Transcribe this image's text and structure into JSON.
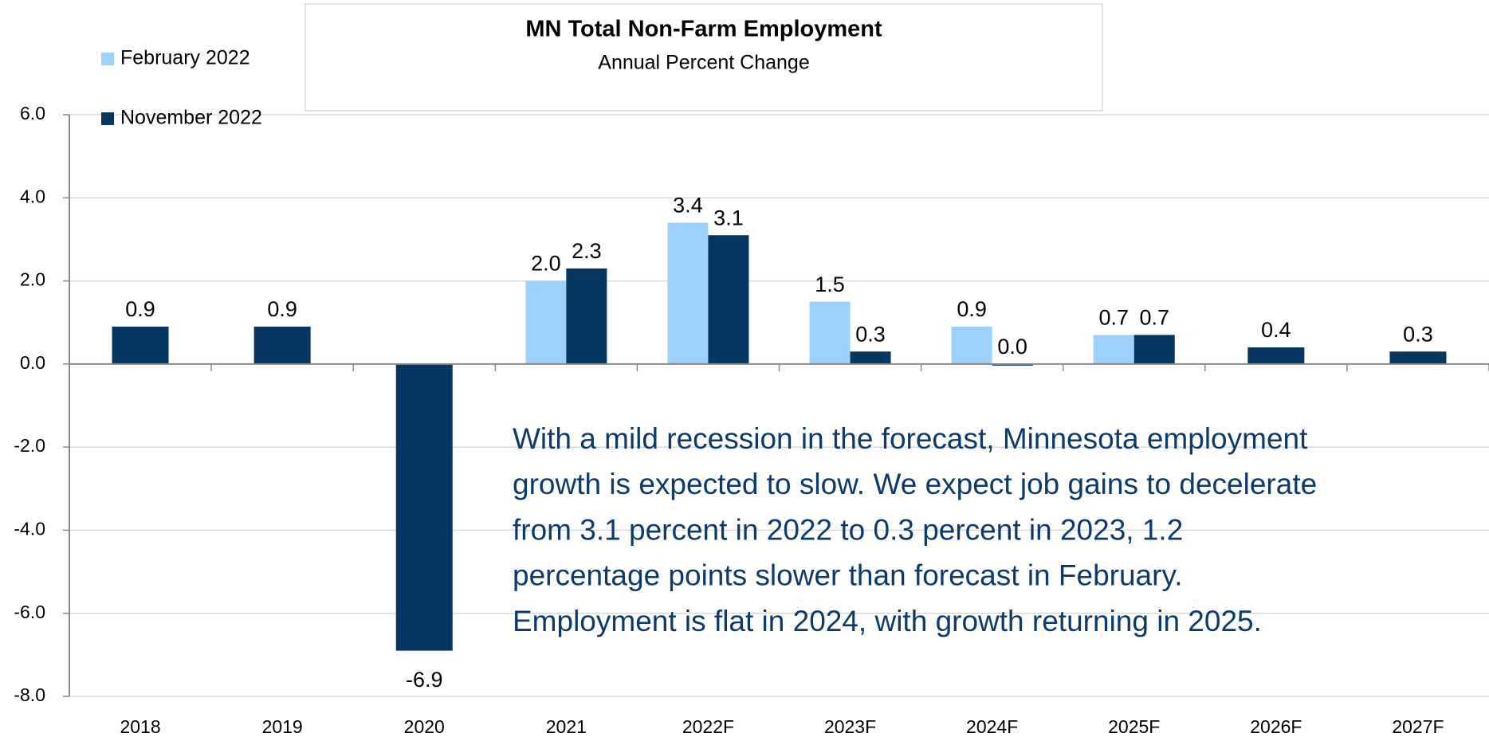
{
  "chart_data": {
    "type": "bar",
    "title": "MN Total Non-Farm Employment",
    "subtitle": "Annual Percent Change",
    "categories": [
      "2018",
      "2019",
      "2020",
      "2021",
      "2022F",
      "2023F",
      "2024F",
      "2025F",
      "2026F",
      "2027F"
    ],
    "series": [
      {
        "name": "February 2022",
        "color": "#9dd0fa",
        "values": [
          null,
          null,
          null,
          2.0,
          3.4,
          1.5,
          0.9,
          0.7,
          null,
          null
        ],
        "value_labels": [
          null,
          null,
          null,
          "2.0",
          "3.4",
          "1.5",
          "0.9",
          "0.7",
          null,
          null
        ]
      },
      {
        "name": "November 2022",
        "color": "#053660",
        "values": [
          0.9,
          0.9,
          -6.9,
          2.3,
          3.1,
          0.3,
          0.0,
          0.7,
          0.4,
          0.3
        ],
        "value_labels": [
          "0.9",
          "0.9",
          "-6.9",
          "2.3",
          "3.1",
          "0.3",
          "0.0",
          "0.7",
          "0.4",
          "0.3"
        ]
      }
    ],
    "ylim": [
      -8,
      6
    ],
    "yticks": [
      {
        "value": -8,
        "label": "-8.0"
      },
      {
        "value": -6,
        "label": "-6.0"
      },
      {
        "value": -4,
        "label": "-4.0"
      },
      {
        "value": -2,
        "label": "-2.0"
      },
      {
        "value": 0,
        "label": "0.0"
      },
      {
        "value": 2,
        "label": "2.0"
      },
      {
        "value": 4,
        "label": "4.0"
      },
      {
        "value": 6,
        "label": "6.0"
      }
    ],
    "grid": true,
    "legend": "upper left",
    "annotation": [
      "With a mild recession in the forecast, Minnesota employment",
      "growth is expected to slow. We expect job gains to decelerate",
      "from 3.1 percent in 2022 to 0.3 percent in 2023, 1.2",
      "percentage points slower than forecast in February.",
      "Employment is flat in 2024, with growth returning in 2025."
    ]
  }
}
